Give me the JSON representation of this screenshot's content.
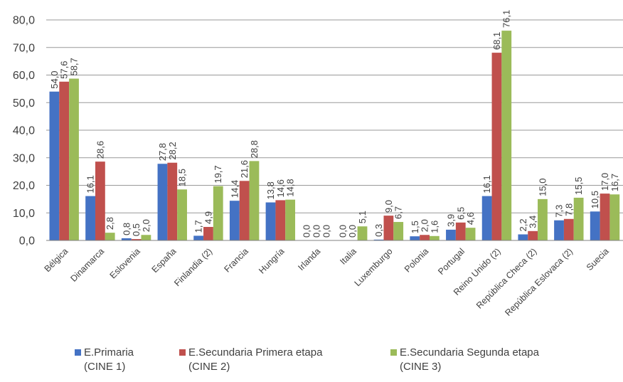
{
  "chart_data": {
    "type": "bar",
    "categories": [
      "Bélgica",
      "Dinamarca",
      "Eslovenia",
      "España",
      "Finlandia (2)",
      "Francia",
      "Hungría",
      "Irlanda",
      "Italia",
      "Luxemburgo",
      "Polonia",
      "Portugal",
      "Reino Unido (2)",
      "República Checa (2)",
      "República Eslovaca (2)",
      "Suecia"
    ],
    "series": [
      {
        "name": "E.Primaria (CINE 1)",
        "line1": "E.Primaria",
        "line2": "(CINE 1)",
        "color": "#4472C4",
        "values": [
          54.0,
          16.1,
          0.8,
          27.8,
          1.7,
          14.4,
          13.8,
          0.0,
          0.0,
          0.3,
          1.5,
          3.9,
          16.1,
          2.2,
          7.3,
          10.5
        ]
      },
      {
        "name": "E.Secundaria Primera etapa (CINE 2)",
        "line1": "E.Secundaria Primera etapa",
        "line2": "(CINE 2)",
        "color": "#C0504D",
        "values": [
          57.6,
          28.6,
          0.5,
          28.2,
          4.9,
          21.6,
          14.6,
          0.0,
          0.0,
          9.0,
          2.0,
          6.5,
          68.1,
          3.4,
          7.8,
          17.0
        ]
      },
      {
        "name": "E.Secundaria Segunda etapa (CINE 3)",
        "line1": "E.Secundaria Segunda etapa",
        "line2": "(CINE 3)",
        "color": "#9BBB59",
        "values": [
          58.7,
          2.8,
          2.0,
          18.5,
          19.7,
          28.8,
          14.8,
          0.0,
          5.1,
          6.7,
          1.6,
          4.6,
          76.1,
          15.0,
          15.5,
          16.7
        ]
      }
    ],
    "yticks": [
      "0,0",
      "10,0",
      "20,0",
      "30,0",
      "40,0",
      "50,0",
      "60,0",
      "70,0",
      "80,0"
    ],
    "ylim": [
      0,
      80
    ],
    "grid": true,
    "legend_position": "bottom"
  }
}
